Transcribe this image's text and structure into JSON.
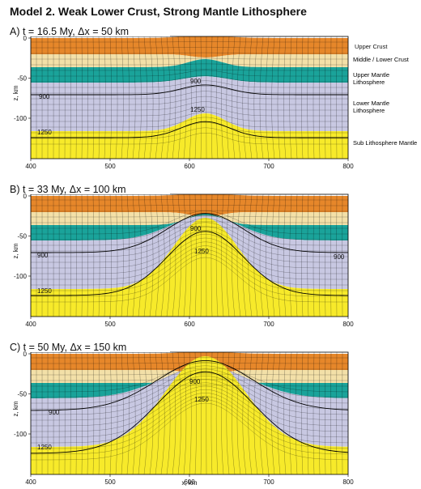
{
  "title": "Model 2. Weak Lower Crust, Strong Mantle Lithosphere",
  "x_axis_label": "x, km",
  "panels": [
    {
      "label": "A) t = 16.5 My, Δx = 50 km",
      "y_axis_label": "z, km",
      "xticks": [
        "400",
        "500",
        "600",
        "700",
        "800"
      ],
      "yticks": [
        "0",
        "-50",
        "-100"
      ],
      "contour_labels": [
        "900",
        "900",
        "1250",
        "1250"
      ]
    },
    {
      "label": "B) t = 33 My, Δx = 100 km",
      "y_axis_label": "z, km",
      "xticks": [
        "400",
        "500",
        "600",
        "700",
        "800"
      ],
      "yticks": [
        "0",
        "-50",
        "-100"
      ],
      "contour_labels": [
        "900",
        "900",
        "1250",
        "900",
        "1250"
      ]
    },
    {
      "label": "C) t = 50 My, Δx = 150 km",
      "y_axis_label": "z, km",
      "xticks": [
        "400",
        "500",
        "600",
        "700",
        "800"
      ],
      "yticks": [
        "0",
        "-50",
        "-100"
      ],
      "contour_labels": [
        "900",
        "1250",
        "900",
        "1250"
      ]
    }
  ],
  "legend": [
    "Upper Crust",
    "Middle / Lower Crust",
    "Upper Mantle Lithosphere",
    "Lower Mantle Lithosphere",
    "Sub Lithosphere Mantle"
  ]
}
